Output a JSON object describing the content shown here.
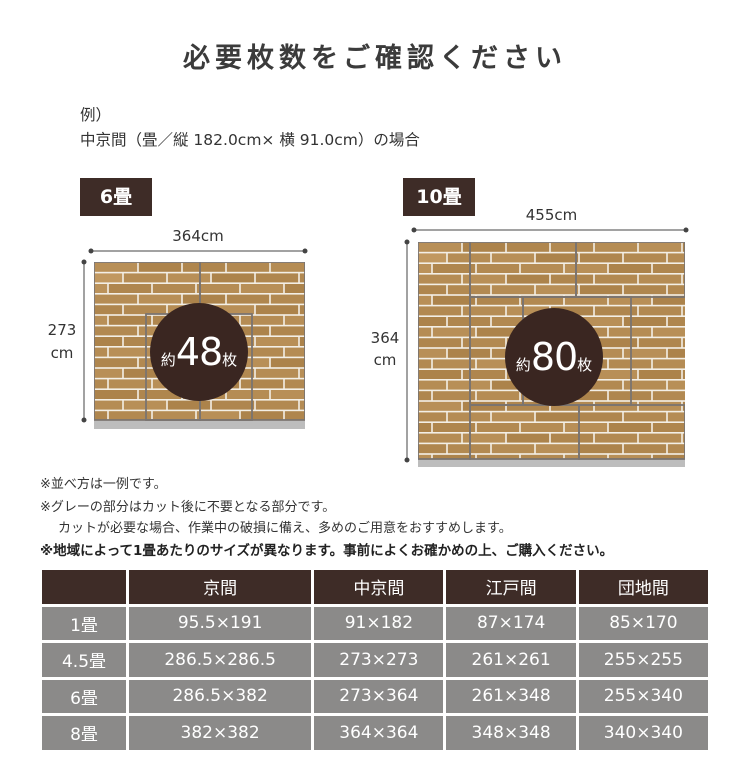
{
  "title": "必要枚数をご確認ください",
  "example": {
    "line1": "例）",
    "line2": "中京間（畳／縦 182.0cm× 横 91.0cm）の場合"
  },
  "layouts": [
    {
      "badge": "6畳",
      "width_label": "364cm",
      "height_label": [
        "273",
        "cm"
      ],
      "count_prefix": "約",
      "count": "48",
      "count_suffix": "枚"
    },
    {
      "badge": "10畳",
      "width_label": "455cm",
      "height_label": [
        "364",
        "cm"
      ],
      "count_prefix": "約",
      "count": "80",
      "count_suffix": "枚"
    }
  ],
  "notes": [
    "※並べ方は一例です。",
    "※グレーの部分はカット後に不要となる部分です。",
    "カットが必要な場合、作業中の破損に備え、多めのご用意をおすすめします。",
    "※地域によって1畳あたりのサイズが異なります。事前によくお確かめの上、ご購入ください。"
  ],
  "table": {
    "columns": [
      "",
      "京間",
      "中京間",
      "江戸間",
      "団地間"
    ],
    "rows": [
      [
        "1畳",
        "95.5×191",
        "91×182",
        "87×174",
        "85×170"
      ],
      [
        "4.5畳",
        "286.5×286.5",
        "273×273",
        "261×261",
        "255×255"
      ],
      [
        "6畳",
        "286.5×382",
        "273×364",
        "261×348",
        "255×340"
      ],
      [
        "8畳",
        "382×382",
        "364×364",
        "348×348",
        "340×340"
      ]
    ]
  },
  "colors": {
    "dark_brown": "#3e2c27",
    "wood": "#b88f57",
    "gray_cell": "#8b8a89",
    "waste_gray": "#bdbdbd"
  }
}
